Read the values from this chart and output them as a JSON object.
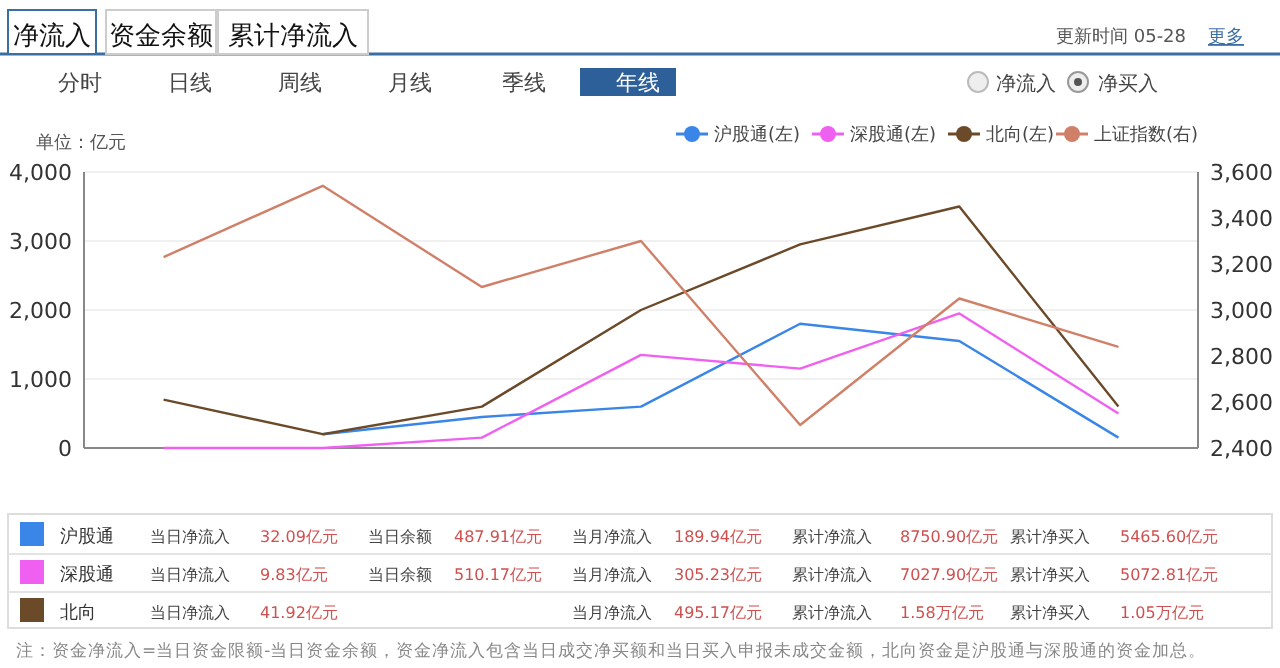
{
  "chart_data": {
    "type": "line",
    "ylabel": "单位：亿元",
    "categories": [
      null,
      null,
      null,
      null,
      null,
      null,
      null
    ],
    "series": [
      {
        "name": "沪股通(左)",
        "color": "#3a86e8",
        "values": [
          null,
          200,
          450,
          600,
          1800,
          1550,
          150
        ]
      },
      {
        "name": "深股通(左)",
        "color": "#f060f0",
        "values": [
          0,
          0,
          150,
          1350,
          1150,
          1950,
          500
        ]
      },
      {
        "name": "北向(左)",
        "color": "#6b4a2a",
        "values": [
          700,
          200,
          600,
          2000,
          2950,
          3500,
          600
        ]
      },
      {
        "name": "上证指数(右)",
        "color": "#d08068",
        "axis": "y2",
        "values": [
          3230,
          3540,
          3100,
          3300,
          2500,
          3050,
          2840
        ]
      }
    ],
    "ylim": [
      0,
      4000
    ],
    "yticks": [
      0,
      {
        "value": 1000,
        "label": "1,000"
      },
      {
        "value": 2000,
        "label": "2,000"
      },
      {
        "value": 3000,
        "label": "3,000"
      },
      {
        "value": 4000,
        "label": "4,000"
      }
    ],
    "y2lim": [
      2400,
      3600
    ],
    "y2ticks": [
      {
        "value": 2400,
        "label": "2,400"
      },
      {
        "value": 2600,
        "label": "2,600"
      },
      {
        "value": 2800,
        "label": "2,800"
      },
      {
        "value": 3000,
        "label": "3,000"
      },
      {
        "value": 3200,
        "label": "3,200"
      },
      {
        "value": 3400,
        "label": "3,400"
      },
      {
        "value": 3600,
        "label": "3,600"
      }
    ],
    "grid": "y",
    "legend": "top right",
    "marker": "none",
    "line_style": "solid",
    "annotations": [
      "净流入",
      "资金余额",
      "累计净流入",
      "更新时间 05-28",
      "更多",
      "分时",
      "日线",
      "周线",
      "月线",
      "季线",
      "年线",
      "净流入",
      "净买入",
      "当日净流入",
      "32.09亿元",
      "当日余额",
      "487.91亿元",
      "当月净流入",
      "189.94亿元",
      "累计净流入",
      "8750.90亿元",
      "累计净买入",
      "5465.60亿元",
      "当日净流入",
      "9.83亿元",
      "当日余额",
      "510.17亿元",
      "当月净流入",
      "305.23亿元",
      "累计净流入",
      "7027.90亿元",
      "累计净买入",
      "5072.81亿元",
      "当日净流入",
      "41.92亿元",
      "当月净流入",
      "495.17亿元",
      "累计净流入",
      "1.58万亿元",
      "累计净买入",
      "1.05万亿元",
      "注：资金净流入=当日资金限额-当日资金余额，资金净流入包含当日成交净买额和当日买入申报未成交金额，北向资金是沪股通与深股通的资金加总。",
      "沪股通",
      "深股通",
      "北向"
    ]
  }
}
